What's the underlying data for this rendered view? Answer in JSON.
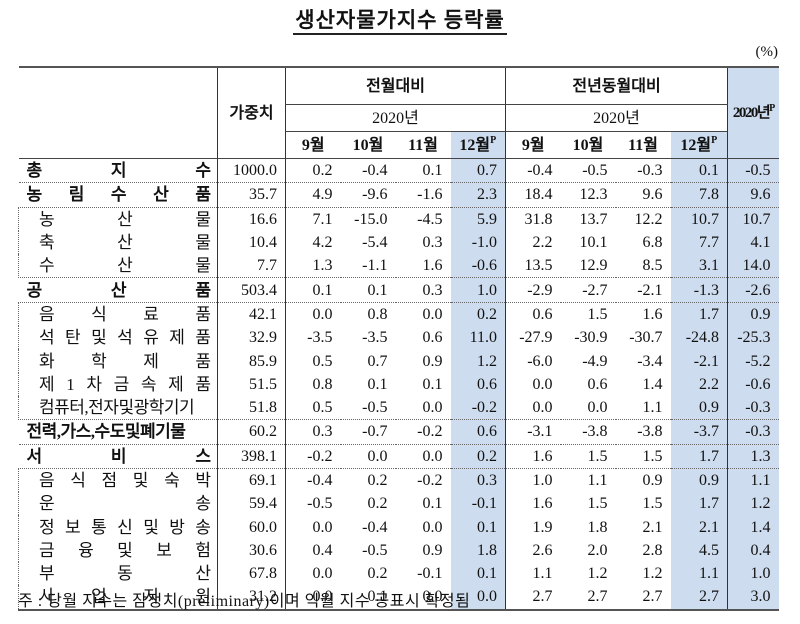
{
  "title": "생산자물가지수 등락률",
  "unit": "(%)",
  "header": {
    "weight": "가중치",
    "mom_group": "전월대비",
    "yoy_group": "전년동월대비",
    "year_label": "2020년",
    "annual_label": "2020년",
    "annual_sup": "P",
    "months": [
      "9월",
      "10월",
      "11월",
      "12월"
    ],
    "prelim_sup": "P"
  },
  "highlight_color": "#cddcee",
  "rows": [
    {
      "label": "총지수",
      "chars": [
        "총",
        "지",
        "수"
      ],
      "level": "major",
      "weight": "1000.0",
      "mom": [
        "0.2",
        "-0.4",
        "0.1",
        "0.7"
      ],
      "yoy": [
        "-0.4",
        "-0.5",
        "-0.3",
        "0.1"
      ],
      "annual": "-0.5"
    },
    {
      "label": "농림수산품",
      "chars": [
        "농",
        "림",
        "수",
        "산",
        "품"
      ],
      "level": "major",
      "weight": "35.7",
      "mom": [
        "4.9",
        "-9.6",
        "-1.6",
        "2.3"
      ],
      "yoy": [
        "18.4",
        "12.3",
        "9.6",
        "7.8"
      ],
      "annual": "9.6"
    },
    {
      "label": "농산물",
      "chars": [
        "농",
        "산",
        "물"
      ],
      "level": "minor",
      "weight": "16.6",
      "mom": [
        "7.1",
        "-15.0",
        "-4.5",
        "5.9"
      ],
      "yoy": [
        "31.8",
        "13.7",
        "12.2",
        "10.7"
      ],
      "annual": "10.7"
    },
    {
      "label": "축산물",
      "chars": [
        "축",
        "산",
        "물"
      ],
      "level": "minor",
      "weight": "10.4",
      "mom": [
        "4.2",
        "-5.4",
        "0.3",
        "-1.0"
      ],
      "yoy": [
        "2.2",
        "10.1",
        "6.8",
        "7.7"
      ],
      "annual": "4.1"
    },
    {
      "label": "수산물",
      "chars": [
        "수",
        "산",
        "물"
      ],
      "level": "minor",
      "weight": "7.7",
      "mom": [
        "1.3",
        "-1.1",
        "1.6",
        "-0.6"
      ],
      "yoy": [
        "13.5",
        "12.9",
        "8.5",
        "3.1"
      ],
      "annual": "14.0"
    },
    {
      "label": "공산품",
      "chars": [
        "공",
        "산",
        "품"
      ],
      "level": "major",
      "weight": "503.4",
      "mom": [
        "0.1",
        "0.1",
        "0.3",
        "1.0"
      ],
      "yoy": [
        "-2.9",
        "-2.7",
        "-2.1",
        "-1.3"
      ],
      "annual": "-2.6"
    },
    {
      "label": "음식료품",
      "chars": [
        "음",
        "식",
        "료",
        "품"
      ],
      "level": "minor",
      "weight": "42.1",
      "mom": [
        "0.0",
        "0.8",
        "0.0",
        "0.2"
      ],
      "yoy": [
        "0.6",
        "1.5",
        "1.6",
        "1.7"
      ],
      "annual": "0.9"
    },
    {
      "label": "석탄및석유제품",
      "chars": [
        "석",
        "탄",
        "및",
        "석",
        "유",
        "제",
        "품"
      ],
      "level": "minor",
      "weight": "32.9",
      "mom": [
        "-3.5",
        "-3.5",
        "0.6",
        "11.0"
      ],
      "yoy": [
        "-27.9",
        "-30.9",
        "-30.7",
        "-24.8"
      ],
      "annual": "-25.3"
    },
    {
      "label": "화학제품",
      "chars": [
        "화",
        "학",
        "제",
        "품"
      ],
      "level": "minor",
      "weight": "85.9",
      "mom": [
        "0.5",
        "0.7",
        "0.9",
        "1.2"
      ],
      "yoy": [
        "-6.0",
        "-4.9",
        "-3.4",
        "-2.1"
      ],
      "annual": "-5.2"
    },
    {
      "label": "제1차금속제품",
      "chars": [
        "제",
        "1",
        "차",
        "금",
        "속",
        "제",
        "품"
      ],
      "level": "minor",
      "weight": "51.5",
      "mom": [
        "0.8",
        "0.1",
        "0.1",
        "0.6"
      ],
      "yoy": [
        "0.0",
        "0.6",
        "1.4",
        "2.2"
      ],
      "annual": "-0.6"
    },
    {
      "label": "컴퓨터,전자및광학기기",
      "chars": [
        "컴퓨터,전자및광학기기"
      ],
      "level": "minor",
      "compact": true,
      "weight": "51.8",
      "mom": [
        "0.5",
        "-0.5",
        "0.0",
        "-0.2"
      ],
      "yoy": [
        "0.0",
        "0.0",
        "1.1",
        "0.9"
      ],
      "annual": "-0.3"
    },
    {
      "label": "전력,가스,수도및폐기물",
      "chars": [
        "전력,가스,수도및폐기물"
      ],
      "level": "major",
      "compact": true,
      "weight": "60.2",
      "mom": [
        "0.3",
        "-0.7",
        "-0.2",
        "0.6"
      ],
      "yoy": [
        "-3.1",
        "-3.8",
        "-3.8",
        "-3.7"
      ],
      "annual": "-0.3"
    },
    {
      "label": "서비스",
      "chars": [
        "서",
        "비",
        "스"
      ],
      "level": "major",
      "weight": "398.1",
      "mom": [
        "-0.2",
        "0.0",
        "0.0",
        "0.2"
      ],
      "yoy": [
        "1.6",
        "1.5",
        "1.5",
        "1.7"
      ],
      "annual": "1.3"
    },
    {
      "label": "음식점및숙박",
      "chars": [
        "음",
        "식",
        "점",
        "및",
        "숙",
        "박"
      ],
      "level": "minor",
      "weight": "69.1",
      "mom": [
        "-0.4",
        "0.2",
        "-0.2",
        "0.3"
      ],
      "yoy": [
        "1.0",
        "1.1",
        "0.9",
        "0.9"
      ],
      "annual": "1.1"
    },
    {
      "label": "운송",
      "chars": [
        "운",
        "송"
      ],
      "level": "minor",
      "weight": "59.4",
      "mom": [
        "-0.5",
        "0.2",
        "0.1",
        "-0.1"
      ],
      "yoy": [
        "1.6",
        "1.5",
        "1.5",
        "1.7"
      ],
      "annual": "1.2"
    },
    {
      "label": "정보통신및방송",
      "chars": [
        "정",
        "보",
        "통",
        "신",
        "및",
        "방",
        "송"
      ],
      "level": "minor",
      "weight": "60.0",
      "mom": [
        "0.0",
        "-0.4",
        "0.0",
        "0.1"
      ],
      "yoy": [
        "1.9",
        "1.8",
        "2.1",
        "2.1"
      ],
      "annual": "1.4"
    },
    {
      "label": "금융및보험",
      "chars": [
        "금",
        "융",
        "및",
        "보",
        "험"
      ],
      "level": "minor",
      "weight": "30.6",
      "mom": [
        "0.4",
        "-0.5",
        "0.9",
        "1.8"
      ],
      "yoy": [
        "2.6",
        "2.0",
        "2.8",
        "4.5"
      ],
      "annual": "0.4"
    },
    {
      "label": "부동산",
      "chars": [
        "부",
        "동",
        "산"
      ],
      "level": "minor",
      "weight": "67.8",
      "mom": [
        "0.0",
        "0.2",
        "-0.1",
        "0.1"
      ],
      "yoy": [
        "1.1",
        "1.2",
        "1.2",
        "1.1"
      ],
      "annual": "1.0"
    },
    {
      "label": "사업지원",
      "chars": [
        "사",
        "업",
        "지",
        "원"
      ],
      "level": "minor",
      "weight": "31.2",
      "mom": [
        "0.0",
        "0.1",
        "0.0",
        "0.0"
      ],
      "yoy": [
        "2.7",
        "2.7",
        "2.7",
        "2.7"
      ],
      "annual": "3.0"
    }
  ],
  "footnote": "주 : 당월 지수는 잠정치(preliminary)이며 익월 지수 공표시 확정됨"
}
